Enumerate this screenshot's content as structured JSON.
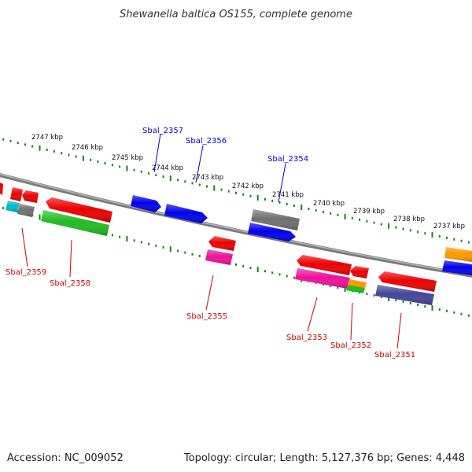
{
  "title": "Shewanella baltica OS155, complete genome",
  "footer": {
    "accession": "Accession: NC_009052",
    "summary": "Topology: circular; Length: 5,127,376 bp; Genes: 4,448"
  },
  "scale_labels": [
    "2747 kbp",
    "2746 kbp",
    "2745 kbp",
    "2744 kbp",
    "2743 kbp",
    "2742 kbp",
    "2741 kbp",
    "2740 kbp",
    "2739 kbp",
    "2738 kbp",
    "2737 kbp"
  ],
  "gene_labels_top": [
    "Sbal_2357",
    "Sbal_2356",
    "Sbal_2354"
  ],
  "gene_labels_bottom": [
    "Sbal_2359",
    "Sbal_2358",
    "Sbal_2355",
    "Sbal_2353",
    "Sbal_2352",
    "Sbal_2351"
  ],
  "colors": {
    "top_label": "#0000cc",
    "bottom_label": "#cc0000",
    "tick": "#118811",
    "backbone": "#808080",
    "red": "#ee0000",
    "blue": "#0000ee",
    "gray": "#707070",
    "green": "#22bb22",
    "magenta": "#ee1199",
    "orange": "#ff9900",
    "cyan": "#00bbcc",
    "navy": "#444499"
  }
}
